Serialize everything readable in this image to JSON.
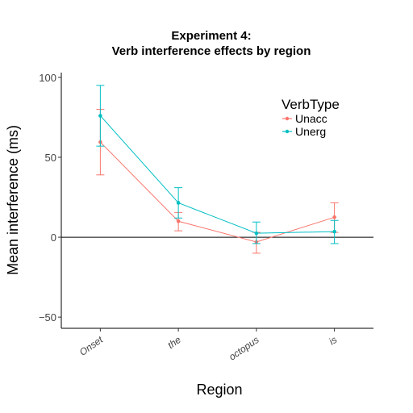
{
  "chart_data": {
    "type": "line",
    "title": "Experiment  4:",
    "subtitle": "Verb interference effects by region",
    "xlabel": "Region",
    "ylabel": "Mean interference (ms)",
    "categories": [
      "Onset",
      "the",
      "octopus",
      "is"
    ],
    "ylim": [
      -57,
      103
    ],
    "yticks": [
      -50,
      0,
      50,
      100
    ],
    "grid": false,
    "reference_line_y": 0,
    "legend": {
      "title": "VerbType",
      "position": "top-right"
    },
    "series": [
      {
        "name": "Unacc",
        "color": "#F8766D",
        "values": [
          59.5,
          10,
          -3,
          12.5
        ],
        "error_low": [
          39,
          4,
          -10,
          3
        ],
        "error_high": [
          80,
          15.5,
          3,
          21.5
        ]
      },
      {
        "name": "Unerg",
        "color": "#00BFC4",
        "values": [
          76,
          21.5,
          2.5,
          3.5
        ],
        "error_low": [
          57,
          12,
          -4,
          -4
        ],
        "error_high": [
          95,
          31,
          9.5,
          10.5
        ]
      }
    ]
  }
}
